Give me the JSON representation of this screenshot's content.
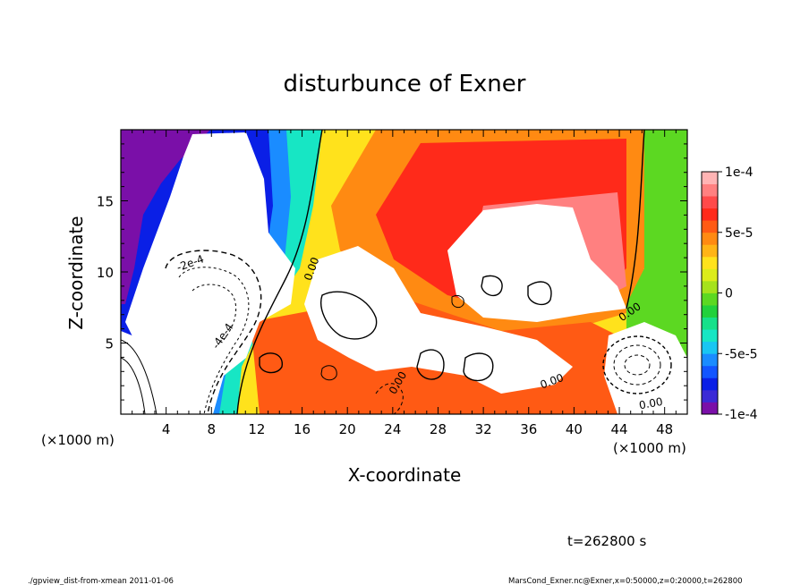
{
  "chart_data": {
    "type": "heatmap",
    "title": "disturbunce of Exner",
    "xlabel": "X-coordinate",
    "ylabel": "Z-coordinate",
    "x_unit_left": "(×1000 m)",
    "x_unit_right": "(×1000 m)",
    "xlim": [
      0,
      50
    ],
    "ylim": [
      0,
      20
    ],
    "x_ticks": [
      4,
      8,
      12,
      16,
      20,
      24,
      28,
      32,
      36,
      40,
      44,
      48
    ],
    "y_ticks": [
      5,
      10,
      15
    ],
    "colorbar": {
      "range": [
        -0.0001,
        0.0001
      ],
      "tick_values": [
        0.0001,
        5e-05,
        0,
        -5e-05,
        -0.0001
      ],
      "tick_labels": [
        "1e-4",
        "5e-5",
        "0",
        "-5e-5",
        "-1e-4"
      ],
      "colors": [
        "#7a0fa8",
        "#3b2ad6",
        "#0a1fe6",
        "#1255ff",
        "#1a8cff",
        "#19c6f2",
        "#17e6c4",
        "#16e08a",
        "#22d13c",
        "#5cd822",
        "#a6e21c",
        "#dcec1a",
        "#ffe21c",
        "#ffb416",
        "#ff8a12",
        "#ff5a14",
        "#ff2a1a",
        "#ff4a4a",
        "#ff8080",
        "#ffb4b4"
      ]
    },
    "contour_labels": [
      "-2e-4",
      "-4e-4",
      "0.00",
      "0.00",
      "0.00",
      "0.00",
      "0.00"
    ],
    "time_label": "t=262800 s",
    "footer_left": "./gpview_dist-from-xmean  2011-01-06",
    "footer_right": "MarsCond_Exner.nc@Exner,x=0:50000,z=0:20000,t=262800"
  }
}
